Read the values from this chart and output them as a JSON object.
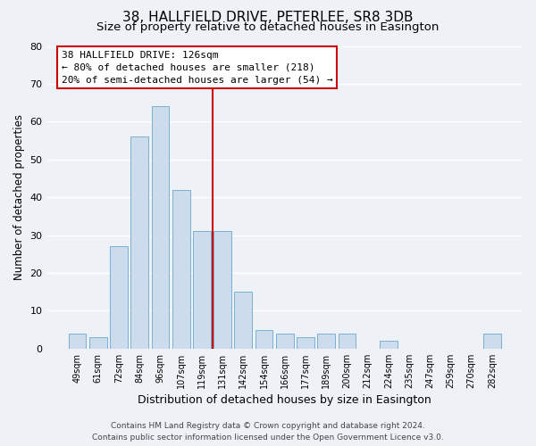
{
  "title": "38, HALLFIELD DRIVE, PETERLEE, SR8 3DB",
  "subtitle": "Size of property relative to detached houses in Easington",
  "xlabel": "Distribution of detached houses by size in Easington",
  "ylabel": "Number of detached properties",
  "bar_labels": [
    "49sqm",
    "61sqm",
    "72sqm",
    "84sqm",
    "96sqm",
    "107sqm",
    "119sqm",
    "131sqm",
    "142sqm",
    "154sqm",
    "166sqm",
    "177sqm",
    "189sqm",
    "200sqm",
    "212sqm",
    "224sqm",
    "235sqm",
    "247sqm",
    "259sqm",
    "270sqm",
    "282sqm"
  ],
  "bar_heights": [
    4,
    3,
    27,
    56,
    64,
    42,
    31,
    31,
    15,
    5,
    4,
    3,
    4,
    4,
    0,
    2,
    0,
    0,
    0,
    0,
    4
  ],
  "bar_color": "#ccdcec",
  "bar_edge_color": "#7ab0d0",
  "vline_index": 7,
  "ylim": [
    0,
    80
  ],
  "yticks": [
    0,
    10,
    20,
    30,
    40,
    50,
    60,
    70,
    80
  ],
  "annotation_title": "38 HALLFIELD DRIVE: 126sqm",
  "annotation_line1": "← 80% of detached houses are smaller (218)",
  "annotation_line2": "20% of semi-detached houses are larger (54) →",
  "footer_line1": "Contains HM Land Registry data © Crown copyright and database right 2024.",
  "footer_line2": "Contains public sector information licensed under the Open Government Licence v3.0.",
  "background_color": "#eef2f7",
  "grid_color": "#ffffff",
  "vline_color": "#cc0000",
  "annotation_box_color": "#cc0000",
  "title_fontsize": 11,
  "subtitle_fontsize": 9.5,
  "xlabel_fontsize": 9,
  "ylabel_fontsize": 8.5,
  "annotation_fontsize": 8,
  "footer_fontsize": 6.5
}
